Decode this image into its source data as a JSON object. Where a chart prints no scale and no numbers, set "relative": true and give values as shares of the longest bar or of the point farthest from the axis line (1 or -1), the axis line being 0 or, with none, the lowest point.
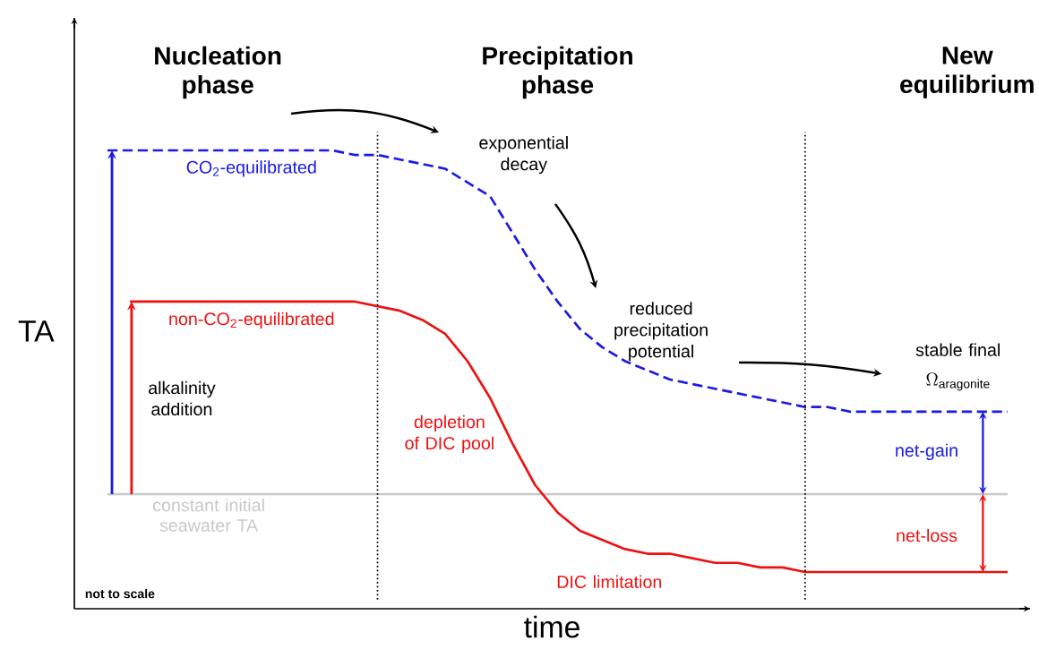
{
  "chart_data": {
    "type": "line",
    "relative": true,
    "xlabel": "time",
    "ylabel": "TA",
    "categories": [
      null,
      null,
      null,
      null,
      null,
      null,
      null,
      null,
      null,
      null,
      null,
      null,
      null,
      null,
      null,
      null,
      null,
      null,
      null,
      null,
      null,
      null,
      null,
      null,
      null,
      null,
      null,
      null,
      null,
      null,
      null,
      null,
      null,
      null,
      null,
      null,
      null,
      null,
      null,
      null,
      null
    ],
    "series": [
      {
        "name": "CO$_{2}$-equilibrated",
        "color": "#1a1ae6",
        "line_style": "dashed",
        "values": [
          1.0,
          1.0,
          1.0,
          1.0,
          1.0,
          1.0,
          1.0,
          1.0,
          1.0,
          1.0,
          1.0,
          0.99,
          0.99,
          0.98,
          0.97,
          0.96,
          0.93,
          0.9,
          0.82,
          0.74,
          0.67,
          0.61,
          0.57,
          0.54,
          0.52,
          0.5,
          0.49,
          0.48,
          0.47,
          0.46,
          0.45,
          0.44,
          0.44,
          0.43,
          0.43,
          0.43,
          0.43,
          0.43,
          0.43,
          0.43,
          0.43
        ]
      },
      {
        "name": "non-CO$_{2}$-equilibrated",
        "color": "#ee1111",
        "line_style": "solid",
        "values": [
          null,
          0.67,
          0.67,
          0.67,
          0.67,
          0.67,
          0.67,
          0.67,
          0.67,
          0.67,
          0.67,
          0.67,
          0.66,
          0.65,
          0.63,
          0.6,
          0.54,
          0.46,
          0.36,
          0.27,
          0.21,
          0.17,
          0.15,
          0.13,
          0.12,
          0.12,
          0.11,
          0.1,
          0.1,
          0.09,
          0.09,
          0.08,
          0.08,
          0.08,
          0.08,
          0.08,
          0.08,
          0.08,
          0.08,
          0.08,
          0.08
        ]
      }
    ],
    "ref_lines": [
      {
        "axis": "y",
        "value": 0.25,
        "label": "constant initial seawater TA",
        "color": "#c8c8c8",
        "line_style": "solid"
      }
    ],
    "annotations": [
      "Nucleation phase",
      "Precipitation phase",
      "New equilibrium",
      "exponential decay",
      "reduced precipitation potential",
      "stable final",
      "\\Omega_{\\mathrm{aragonite}}",
      "alkalinity addition",
      "depletion of DIC pool",
      "DIC limitation",
      "net-gain",
      "net-loss",
      "not to scale"
    ]
  }
}
